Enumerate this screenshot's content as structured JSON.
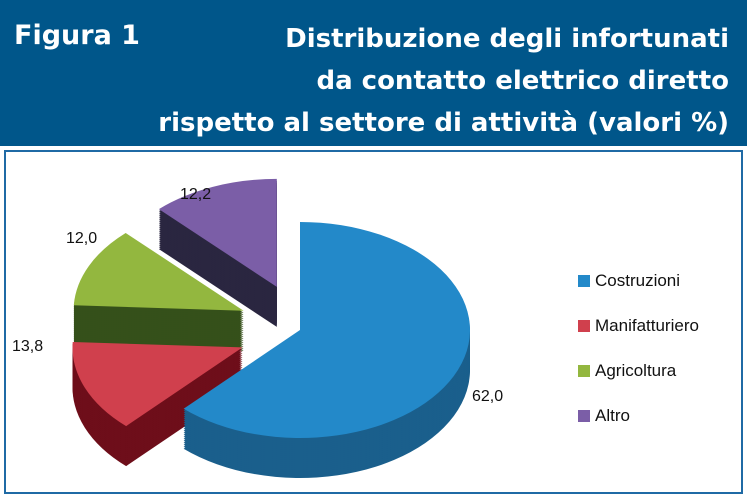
{
  "header": {
    "figure_label": "Figura 1",
    "title_lines": [
      "Distribuzione degli infortunati",
      "da contatto elettrico diretto",
      "rispetto al settore di attività (valori %)"
    ]
  },
  "chart_data": {
    "type": "pie",
    "three_d": true,
    "exploded": [
      "Manifatturiero",
      "Agricoltura",
      "Altro"
    ],
    "categories": [
      "Costruzioni",
      "Manifatturiero",
      "Agricoltura",
      "Altro"
    ],
    "values": [
      62.0,
      13.8,
      12.0,
      12.2
    ],
    "data_labels": [
      "62,0",
      "13,8",
      "12,0",
      "12,2"
    ],
    "colors": [
      "#2389c9",
      "#d0404d",
      "#93b73f",
      "#7b5ea7"
    ],
    "side_colors": [
      "#1a5f8c",
      "#6e0e1a",
      "#35501a",
      "#2a2640"
    ],
    "legend_position": "right"
  }
}
